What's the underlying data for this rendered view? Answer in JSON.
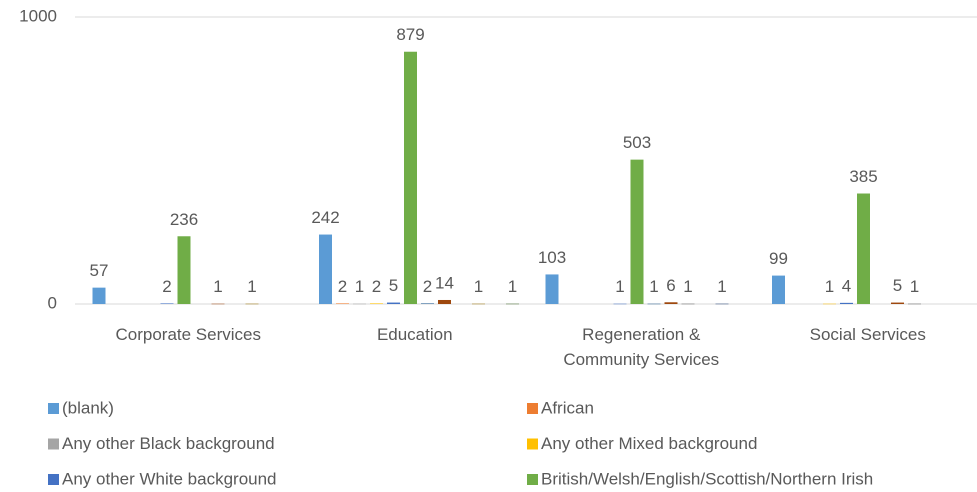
{
  "chart_data": {
    "type": "bar",
    "categories": [
      "Corporate Services",
      "Education",
      "Regeneration & Community Services",
      "Social Services"
    ],
    "series": [
      {
        "name": "(blank)",
        "color": "#5b9bd5",
        "values": [
          57,
          242,
          103,
          99
        ]
      },
      {
        "name": "African",
        "color": "#ed7d31",
        "values": [
          null,
          2,
          null,
          null
        ]
      },
      {
        "name": "Any other Black background",
        "color": "#a5a5a5",
        "values": [
          null,
          1,
          null,
          null
        ]
      },
      {
        "name": "Any other Mixed background",
        "color": "#ffc000",
        "values": [
          null,
          2,
          null,
          1
        ]
      },
      {
        "name": "Any other White background",
        "color": "#4472c4",
        "values": [
          2,
          5,
          1,
          4
        ]
      },
      {
        "name": "British/Welsh/English/Scottish/Northern Irish",
        "color": "#70ad47",
        "values": [
          236,
          879,
          503,
          385
        ]
      },
      {
        "color": "#255e91",
        "values": [
          null,
          2,
          1,
          null
        ]
      },
      {
        "color": "#9e480e",
        "values": [
          1,
          14,
          6,
          5
        ]
      },
      {
        "color": "#636363",
        "values": [
          null,
          null,
          1,
          1
        ]
      },
      {
        "color": "#997300",
        "values": [
          1,
          1,
          null,
          null
        ]
      },
      {
        "color": "#264478",
        "values": [
          null,
          null,
          1,
          null
        ]
      },
      {
        "color": "#43682b",
        "values": [
          null,
          1,
          null,
          null
        ]
      }
    ],
    "ylim": [
      0,
      1000
    ],
    "yticks": [
      0,
      1000
    ],
    "grid": true,
    "legend": "bottom"
  }
}
